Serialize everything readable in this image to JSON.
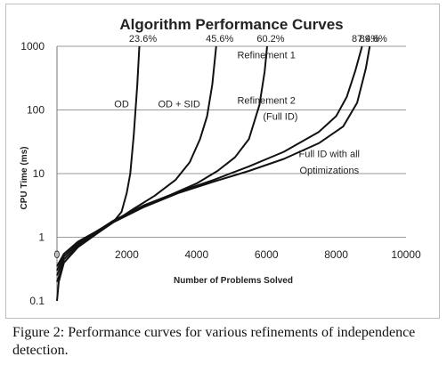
{
  "chart_data": {
    "type": "line",
    "title": "Algorithm Performance Curves",
    "xlabel": "Number of Problems Solved",
    "ylabel": "CPU Time (ms)",
    "xlim": [
      0,
      10000
    ],
    "ylim": [
      0.1,
      1000
    ],
    "yscale": "log",
    "x_ticks": [
      0,
      2000,
      4000,
      6000,
      8000,
      10000
    ],
    "x_tick_labels": [
      "0",
      "2000",
      "4000",
      "6000",
      "8000",
      "10000"
    ],
    "y_ticks": [
      0.1,
      1,
      10,
      100,
      1000
    ],
    "y_tick_labels": [
      "0.1",
      "1",
      "10",
      "100",
      "1000"
    ],
    "grid": "horizontal",
    "percent_labels": [
      {
        "text": "23.6%",
        "x": 2360,
        "y": 1000
      },
      {
        "text": "45.6%",
        "x": 4560,
        "y": 1000
      },
      {
        "text": "60.2%",
        "x": 6020,
        "y": 1000
      },
      {
        "text": "87.4%",
        "x": 8740,
        "y": 1000
      },
      {
        "text": "89.6%",
        "x": 8960,
        "y": 1000
      }
    ],
    "annotations": [
      {
        "text": "OD",
        "x": 1850,
        "y": 110
      },
      {
        "text": "OD + SID",
        "x": 3500,
        "y": 110
      },
      {
        "text": "Refinement 1",
        "x": 6000,
        "y": 650
      },
      {
        "text": "Refinement 2",
        "x": 6000,
        "y": 125
      },
      {
        "text": "(Full ID)",
        "x": 6400,
        "y": 70
      },
      {
        "text": "Full ID with all",
        "x": 7800,
        "y": 18
      },
      {
        "text": "Optimizations",
        "x": 7800,
        "y": 10
      }
    ],
    "series": [
      {
        "values": [
          [
            0,
            0.1
          ],
          [
            50,
            0.2
          ],
          [
            200,
            0.4
          ],
          [
            600,
            0.7
          ],
          [
            1200,
            1.2
          ],
          [
            1600,
            1.7
          ],
          [
            1850,
            2.5
          ],
          [
            2000,
            5
          ],
          [
            2100,
            10
          ],
          [
            2200,
            40
          ],
          [
            2300,
            250
          ],
          [
            2360,
            1000
          ]
        ]
      },
      {
        "values": [
          [
            0,
            0.2
          ],
          [
            200,
            0.4
          ],
          [
            600,
            0.7
          ],
          [
            1200,
            1.2
          ],
          [
            1600,
            1.7
          ],
          [
            2200,
            2.8
          ],
          [
            2800,
            4.5
          ],
          [
            3400,
            8
          ],
          [
            3800,
            15
          ],
          [
            4100,
            35
          ],
          [
            4300,
            80
          ],
          [
            4450,
            250
          ],
          [
            4560,
            1000
          ]
        ]
      },
      {
        "values": [
          [
            0,
            0.25
          ],
          [
            200,
            0.45
          ],
          [
            600,
            0.75
          ],
          [
            1200,
            1.3
          ],
          [
            1600,
            1.8
          ],
          [
            2400,
            3
          ],
          [
            3200,
            4.5
          ],
          [
            4000,
            7
          ],
          [
            4600,
            11
          ],
          [
            5100,
            18
          ],
          [
            5500,
            35
          ],
          [
            5800,
            120
          ],
          [
            5950,
            400
          ],
          [
            6020,
            1000
          ]
        ]
      },
      {
        "values": [
          [
            0,
            0.3
          ],
          [
            200,
            0.5
          ],
          [
            600,
            0.8
          ],
          [
            1200,
            1.3
          ],
          [
            1600,
            1.75
          ],
          [
            2500,
            3.2
          ],
          [
            3500,
            5.2
          ],
          [
            4500,
            8
          ],
          [
            5500,
            13
          ],
          [
            6500,
            22
          ],
          [
            7500,
            45
          ],
          [
            8000,
            80
          ],
          [
            8300,
            160
          ],
          [
            8550,
            420
          ],
          [
            8740,
            1000
          ]
        ]
      },
      {
        "values": [
          [
            0,
            0.35
          ],
          [
            200,
            0.55
          ],
          [
            600,
            0.85
          ],
          [
            1200,
            1.3
          ],
          [
            1600,
            1.7
          ],
          [
            2500,
            3
          ],
          [
            3500,
            5
          ],
          [
            4500,
            7.5
          ],
          [
            5500,
            11
          ],
          [
            6500,
            17
          ],
          [
            7500,
            30
          ],
          [
            8200,
            55
          ],
          [
            8600,
            130
          ],
          [
            8850,
            450
          ],
          [
            8960,
            1000
          ]
        ]
      }
    ]
  },
  "caption": "Figure 2: Performance curves for various refinements of independence detection."
}
